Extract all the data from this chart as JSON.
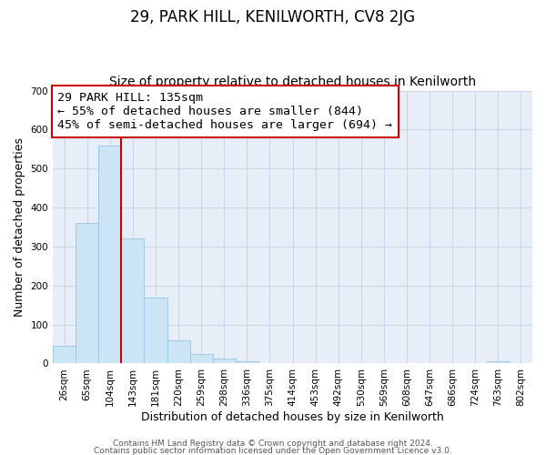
{
  "title": "29, PARK HILL, KENILWORTH, CV8 2JG",
  "subtitle": "Size of property relative to detached houses in Kenilworth",
  "xlabel": "Distribution of detached houses by size in Kenilworth",
  "ylabel": "Number of detached properties",
  "bar_values": [
    45,
    360,
    560,
    320,
    170,
    60,
    25,
    12,
    5,
    2,
    0,
    0,
    0,
    0,
    0,
    0,
    0,
    0,
    0,
    5,
    0
  ],
  "bin_labels": [
    "26sqm",
    "65sqm",
    "104sqm",
    "143sqm",
    "181sqm",
    "220sqm",
    "259sqm",
    "298sqm",
    "336sqm",
    "375sqm",
    "414sqm",
    "453sqm",
    "492sqm",
    "530sqm",
    "569sqm",
    "608sqm",
    "647sqm",
    "686sqm",
    "724sqm",
    "763sqm",
    "802sqm"
  ],
  "bar_color": "#cce5f5",
  "bar_edge_color": "#9fc8e8",
  "vline_x": 2.5,
  "vline_color": "#cc0000",
  "annotation_line1": "29 PARK HILL: 135sqm",
  "annotation_line2": "← 55% of detached houses are smaller (844)",
  "annotation_line3": "45% of semi-detached houses are larger (694) →",
  "annotation_box_color": "#ffffff",
  "annotation_box_edge": "#cc0000",
  "ylim": [
    0,
    700
  ],
  "yticks": [
    0,
    100,
    200,
    300,
    400,
    500,
    600,
    700
  ],
  "footer_line1": "Contains HM Land Registry data © Crown copyright and database right 2024.",
  "footer_line2": "Contains public sector information licensed under the Open Government Licence v3.0.",
  "bg_color": "#ffffff",
  "plot_bg_color": "#e8eef8",
  "grid_color": "#c8d4e8",
  "title_fontsize": 12,
  "subtitle_fontsize": 10,
  "axis_label_fontsize": 9,
  "tick_fontsize": 7.5,
  "annotation_fontsize": 9.5,
  "footer_fontsize": 6.5
}
